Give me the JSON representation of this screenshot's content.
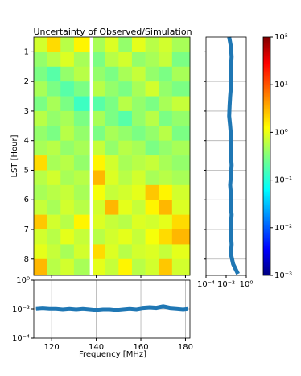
{
  "chart_data": [
    {
      "type": "heatmap",
      "title": "Uncertainty of Observed/Simulation",
      "ylabel": "LST [Hour]",
      "xedges": [
        112,
        118,
        124,
        130,
        137,
        138.5,
        144,
        150,
        156,
        162,
        168,
        174,
        182
      ],
      "yedges": [
        0.5,
        1,
        1.5,
        2,
        2.5,
        3,
        3.5,
        4,
        4.5,
        5,
        5.5,
        6,
        6.5,
        7,
        7.5,
        8,
        8.55
      ],
      "z": [
        [
          0.8,
          2,
          0.6,
          1.5,
          null,
          0.5,
          0.9,
          0.4,
          1,
          0.6,
          0.8,
          0.5
        ],
        [
          0.4,
          0.6,
          0.9,
          0.5,
          null,
          0.3,
          0.6,
          0.8,
          0.4,
          0.5,
          0.7,
          0.3
        ],
        [
          0.3,
          0.2,
          0.4,
          0.6,
          null,
          0.4,
          0.3,
          0.5,
          0.7,
          0.4,
          0.3,
          0.5
        ],
        [
          0.5,
          0.3,
          0.2,
          0.3,
          null,
          0.6,
          0.4,
          0.3,
          0.5,
          0.8,
          0.4,
          0.3
        ],
        [
          0.3,
          0.5,
          0.3,
          0.15,
          null,
          0.2,
          0.3,
          0.6,
          0.4,
          0.3,
          0.5,
          0.7
        ],
        [
          0.6,
          0.4,
          0.5,
          0.3,
          null,
          0.5,
          0.3,
          0.2,
          0.4,
          0.6,
          0.3,
          0.4
        ],
        [
          0.4,
          0.3,
          0.6,
          0.4,
          null,
          0.3,
          0.5,
          0.4,
          0.3,
          0.4,
          0.6,
          0.3
        ],
        [
          0.5,
          0.6,
          0.4,
          0.5,
          null,
          0.7,
          0.4,
          0.6,
          0.5,
          0.3,
          0.4,
          0.5
        ],
        [
          2,
          0.5,
          0.6,
          0.4,
          null,
          1.5,
          0.8,
          0.5,
          0.6,
          0.7,
          0.5,
          0.4
        ],
        [
          0.6,
          0.8,
          0.5,
          0.6,
          null,
          3,
          0.9,
          0.6,
          0.8,
          0.5,
          0.6,
          0.5
        ],
        [
          0.5,
          0.6,
          0.7,
          0.5,
          null,
          1.2,
          0.7,
          0.8,
          1,
          2.5,
          1.5,
          0.8
        ],
        [
          0.7,
          0.5,
          0.8,
          0.6,
          null,
          0.8,
          3,
          1,
          0.7,
          1.5,
          3,
          0.9
        ],
        [
          2.5,
          0.8,
          0.6,
          1.5,
          null,
          0.9,
          0.7,
          0.6,
          0.9,
          0.8,
          1,
          2
        ],
        [
          0.8,
          0.6,
          1,
          0.7,
          null,
          0.6,
          0.8,
          1,
          0.7,
          1.2,
          2,
          3
        ],
        [
          1,
          0.7,
          0.5,
          0.8,
          null,
          2,
          0.9,
          0.6,
          0.8,
          0.9,
          0.7,
          1
        ],
        [
          3,
          0.6,
          0.8,
          0.5,
          null,
          1,
          0.7,
          1.5,
          0.6,
          0.8,
          2.5,
          0.8
        ]
      ],
      "xlim": [
        112,
        182
      ],
      "ylim": [
        8.55,
        0.5
      ],
      "xticks": [
        120,
        140,
        160,
        180
      ],
      "yticks": [
        1,
        2,
        3,
        4,
        5,
        6,
        7,
        8
      ],
      "colormap": "jet",
      "clim": [
        0.001,
        100
      ],
      "clog": true,
      "cticks": [
        {
          "value": 0.001,
          "label": "10⁻³"
        },
        {
          "value": 0.01,
          "label": "10⁻²"
        },
        {
          "value": 0.1,
          "label": "10⁻¹"
        },
        {
          "value": 1,
          "label": "10⁰"
        },
        {
          "value": 10,
          "label": "10¹"
        },
        {
          "value": 100,
          "label": "10²"
        }
      ]
    },
    {
      "type": "hline",
      "color": "#1f77b4",
      "grid": true,
      "xlog": true,
      "y": [
        0.5,
        0.83,
        1.17,
        1.5,
        1.83,
        2.17,
        2.5,
        2.83,
        3.17,
        3.5,
        3.83,
        4.17,
        4.5,
        4.83,
        5.17,
        5.5,
        5.83,
        6.17,
        6.5,
        6.83,
        7.17,
        7.5,
        7.83,
        8.17,
        8.5
      ],
      "values": [
        0.02,
        0.03,
        0.035,
        0.03,
        0.028,
        0.03,
        0.025,
        0.022,
        0.02,
        0.025,
        0.03,
        0.028,
        0.03,
        0.035,
        0.03,
        0.025,
        0.03,
        0.028,
        0.035,
        0.03,
        0.03,
        0.035,
        0.03,
        0.05,
        0.15
      ],
      "xlim": [
        0.0001,
        1
      ],
      "ylim": [
        8.55,
        0.5
      ],
      "xticks": [
        {
          "value": 0.0001,
          "label": "10⁻⁴"
        },
        {
          "value": 0.01,
          "label": "10⁻²"
        },
        {
          "value": 1,
          "label": "10⁰"
        }
      ],
      "yticks": [
        1,
        2,
        3,
        4,
        5,
        6,
        7,
        8
      ]
    },
    {
      "type": "line",
      "color": "#1f77b4",
      "grid": true,
      "ylog": true,
      "xlabel": "Frequency [MHz]",
      "x": [
        113,
        116,
        119,
        122,
        125,
        128,
        131,
        134,
        137,
        140,
        143,
        146,
        149,
        152,
        155,
        158,
        161,
        164,
        167,
        170,
        173,
        176,
        179,
        181
      ],
      "values": [
        0.011,
        0.012,
        0.011,
        0.011,
        0.01,
        0.011,
        0.01,
        0.011,
        0.01,
        0.009,
        0.01,
        0.01,
        0.009,
        0.01,
        0.011,
        0.01,
        0.012,
        0.013,
        0.012,
        0.015,
        0.012,
        0.011,
        0.01,
        0.011
      ],
      "xlim": [
        112,
        182
      ],
      "ylim": [
        0.0001,
        1
      ],
      "xticks": [
        120,
        140,
        160,
        180
      ],
      "yticks": [
        {
          "value": 0.0001,
          "label": "10⁻⁴"
        },
        {
          "value": 0.01,
          "label": "10⁻²"
        },
        {
          "value": 1,
          "label": "10⁰"
        }
      ]
    }
  ]
}
